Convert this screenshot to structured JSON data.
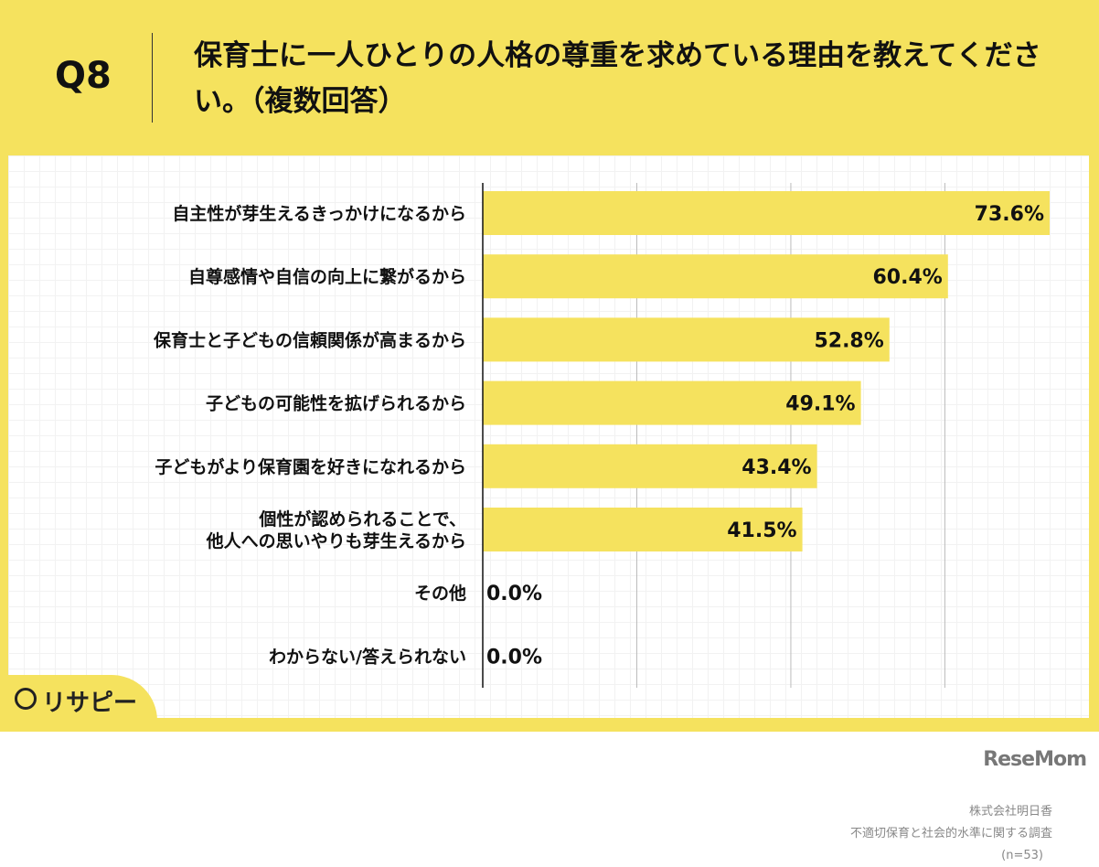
{
  "header": {
    "question_number": "Q8",
    "title": "保育士に一人ひとりの人格の尊重を求めている理由を教えてください。（複数回答）"
  },
  "chart_data": {
    "type": "bar",
    "orientation": "horizontal",
    "categories": [
      "自主性が芽生えるきっかけになるから",
      "自尊感情や自信の向上に繋がるから",
      "保育士と子どもの信頼関係が高まるから",
      "子どもの可能性を拡げられるから",
      "子どもがより保育園を好きになれるから",
      "個性が認められることで、\n他人への思いやりも芽生えるから",
      "その他",
      "わからない/答えられない"
    ],
    "values": [
      73.6,
      60.4,
      52.8,
      49.1,
      43.4,
      41.5,
      0.0,
      0.0
    ],
    "value_labels": [
      "73.6%",
      "60.4%",
      "52.8%",
      "49.1%",
      "43.4%",
      "41.5%",
      "0.0%",
      "0.0%"
    ],
    "xlim": [
      0,
      80
    ],
    "grid": true,
    "bar_color": "#F5E25E"
  },
  "footer": {
    "brand": "リサピー",
    "source_company": "株式会社明日香",
    "survey_name": "不適切保育と社会的水準に関する調査",
    "sample": "(n=53)",
    "publisher": "ReseMom"
  }
}
